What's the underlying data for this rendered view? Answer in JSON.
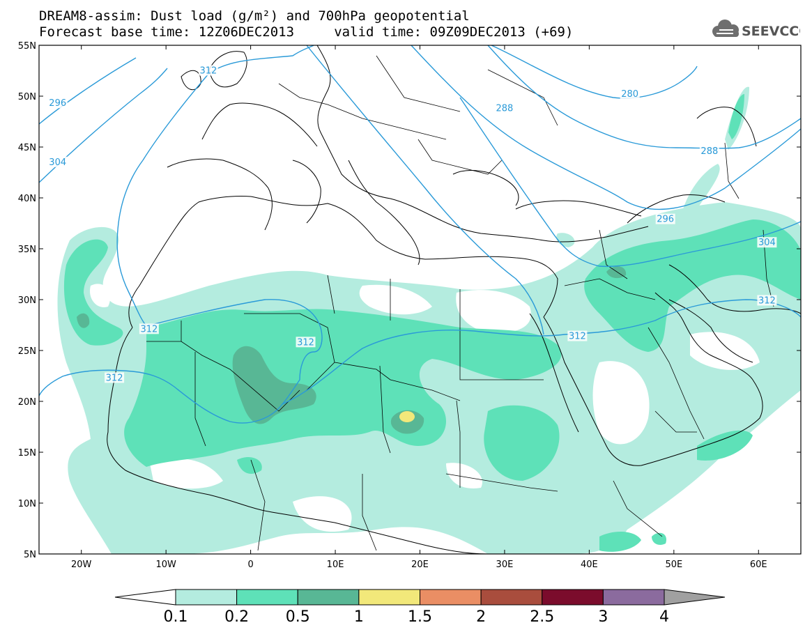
{
  "header": {
    "line1": "DREAM8-assim: Dust load (g/m²) and 700hPa geopotential",
    "line2": "Forecast base time: 12Z06DEC2013     valid time: 09Z09DEC2013 (+69)"
  },
  "logo": {
    "text": "SEEVCCC",
    "icon": "cloud-icon"
  },
  "map": {
    "lon_range": [
      -25,
      65
    ],
    "lat_range": [
      5,
      55
    ],
    "lon_ticks": [
      {
        "value": -20,
        "label": "20W"
      },
      {
        "value": -10,
        "label": "10W"
      },
      {
        "value": 0,
        "label": "0"
      },
      {
        "value": 10,
        "label": "10E"
      },
      {
        "value": 20,
        "label": "20E"
      },
      {
        "value": 30,
        "label": "30E"
      },
      {
        "value": 40,
        "label": "40E"
      },
      {
        "value": 50,
        "label": "50E"
      },
      {
        "value": 60,
        "label": "60E"
      }
    ],
    "lat_ticks": [
      {
        "value": 55,
        "label": "55N"
      },
      {
        "value": 50,
        "label": "50N"
      },
      {
        "value": 45,
        "label": "45N"
      },
      {
        "value": 40,
        "label": "40N"
      },
      {
        "value": 35,
        "label": "35N"
      },
      {
        "value": 30,
        "label": "30N"
      },
      {
        "value": 25,
        "label": "25N"
      },
      {
        "value": 20,
        "label": "20N"
      },
      {
        "value": 15,
        "label": "15N"
      },
      {
        "value": 10,
        "label": "10N"
      },
      {
        "value": 5,
        "label": "5N"
      }
    ],
    "contour_labels": [
      {
        "text": "296",
        "lon": -22.8,
        "lat": 49.3
      },
      {
        "text": "304",
        "lon": -22.8,
        "lat": 43.5
      },
      {
        "text": "312",
        "lon": -5.0,
        "lat": 52.5
      },
      {
        "text": "288",
        "lon": 30.0,
        "lat": 48.8
      },
      {
        "text": "280",
        "lon": 44.8,
        "lat": 50.2
      },
      {
        "text": "288",
        "lon": 54.2,
        "lat": 44.6
      },
      {
        "text": "296",
        "lon": 49.0,
        "lat": 37.9
      },
      {
        "text": "304",
        "lon": 61.0,
        "lat": 35.6
      },
      {
        "text": "312",
        "lon": 61.0,
        "lat": 29.9
      },
      {
        "text": "312",
        "lon": -12.0,
        "lat": 27.1
      },
      {
        "text": "312",
        "lon": 6.5,
        "lat": 25.8
      },
      {
        "text": "312",
        "lon": -16.1,
        "lat": 22.3
      },
      {
        "text": "312",
        "lon": 38.6,
        "lat": 26.4
      }
    ]
  },
  "colorbar": {
    "labels": [
      "0.1",
      "0.2",
      "0.5",
      "1",
      "1.5",
      "2",
      "2.5",
      "3",
      "4"
    ],
    "colors": [
      "#ffffff",
      "#b4ecdf",
      "#5ee1b8",
      "#58b795",
      "#f2e87a",
      "#ea8e64",
      "#a94d3d",
      "#7b0c2c",
      "#8b6b9e",
      "#a0a0a0"
    ]
  }
}
